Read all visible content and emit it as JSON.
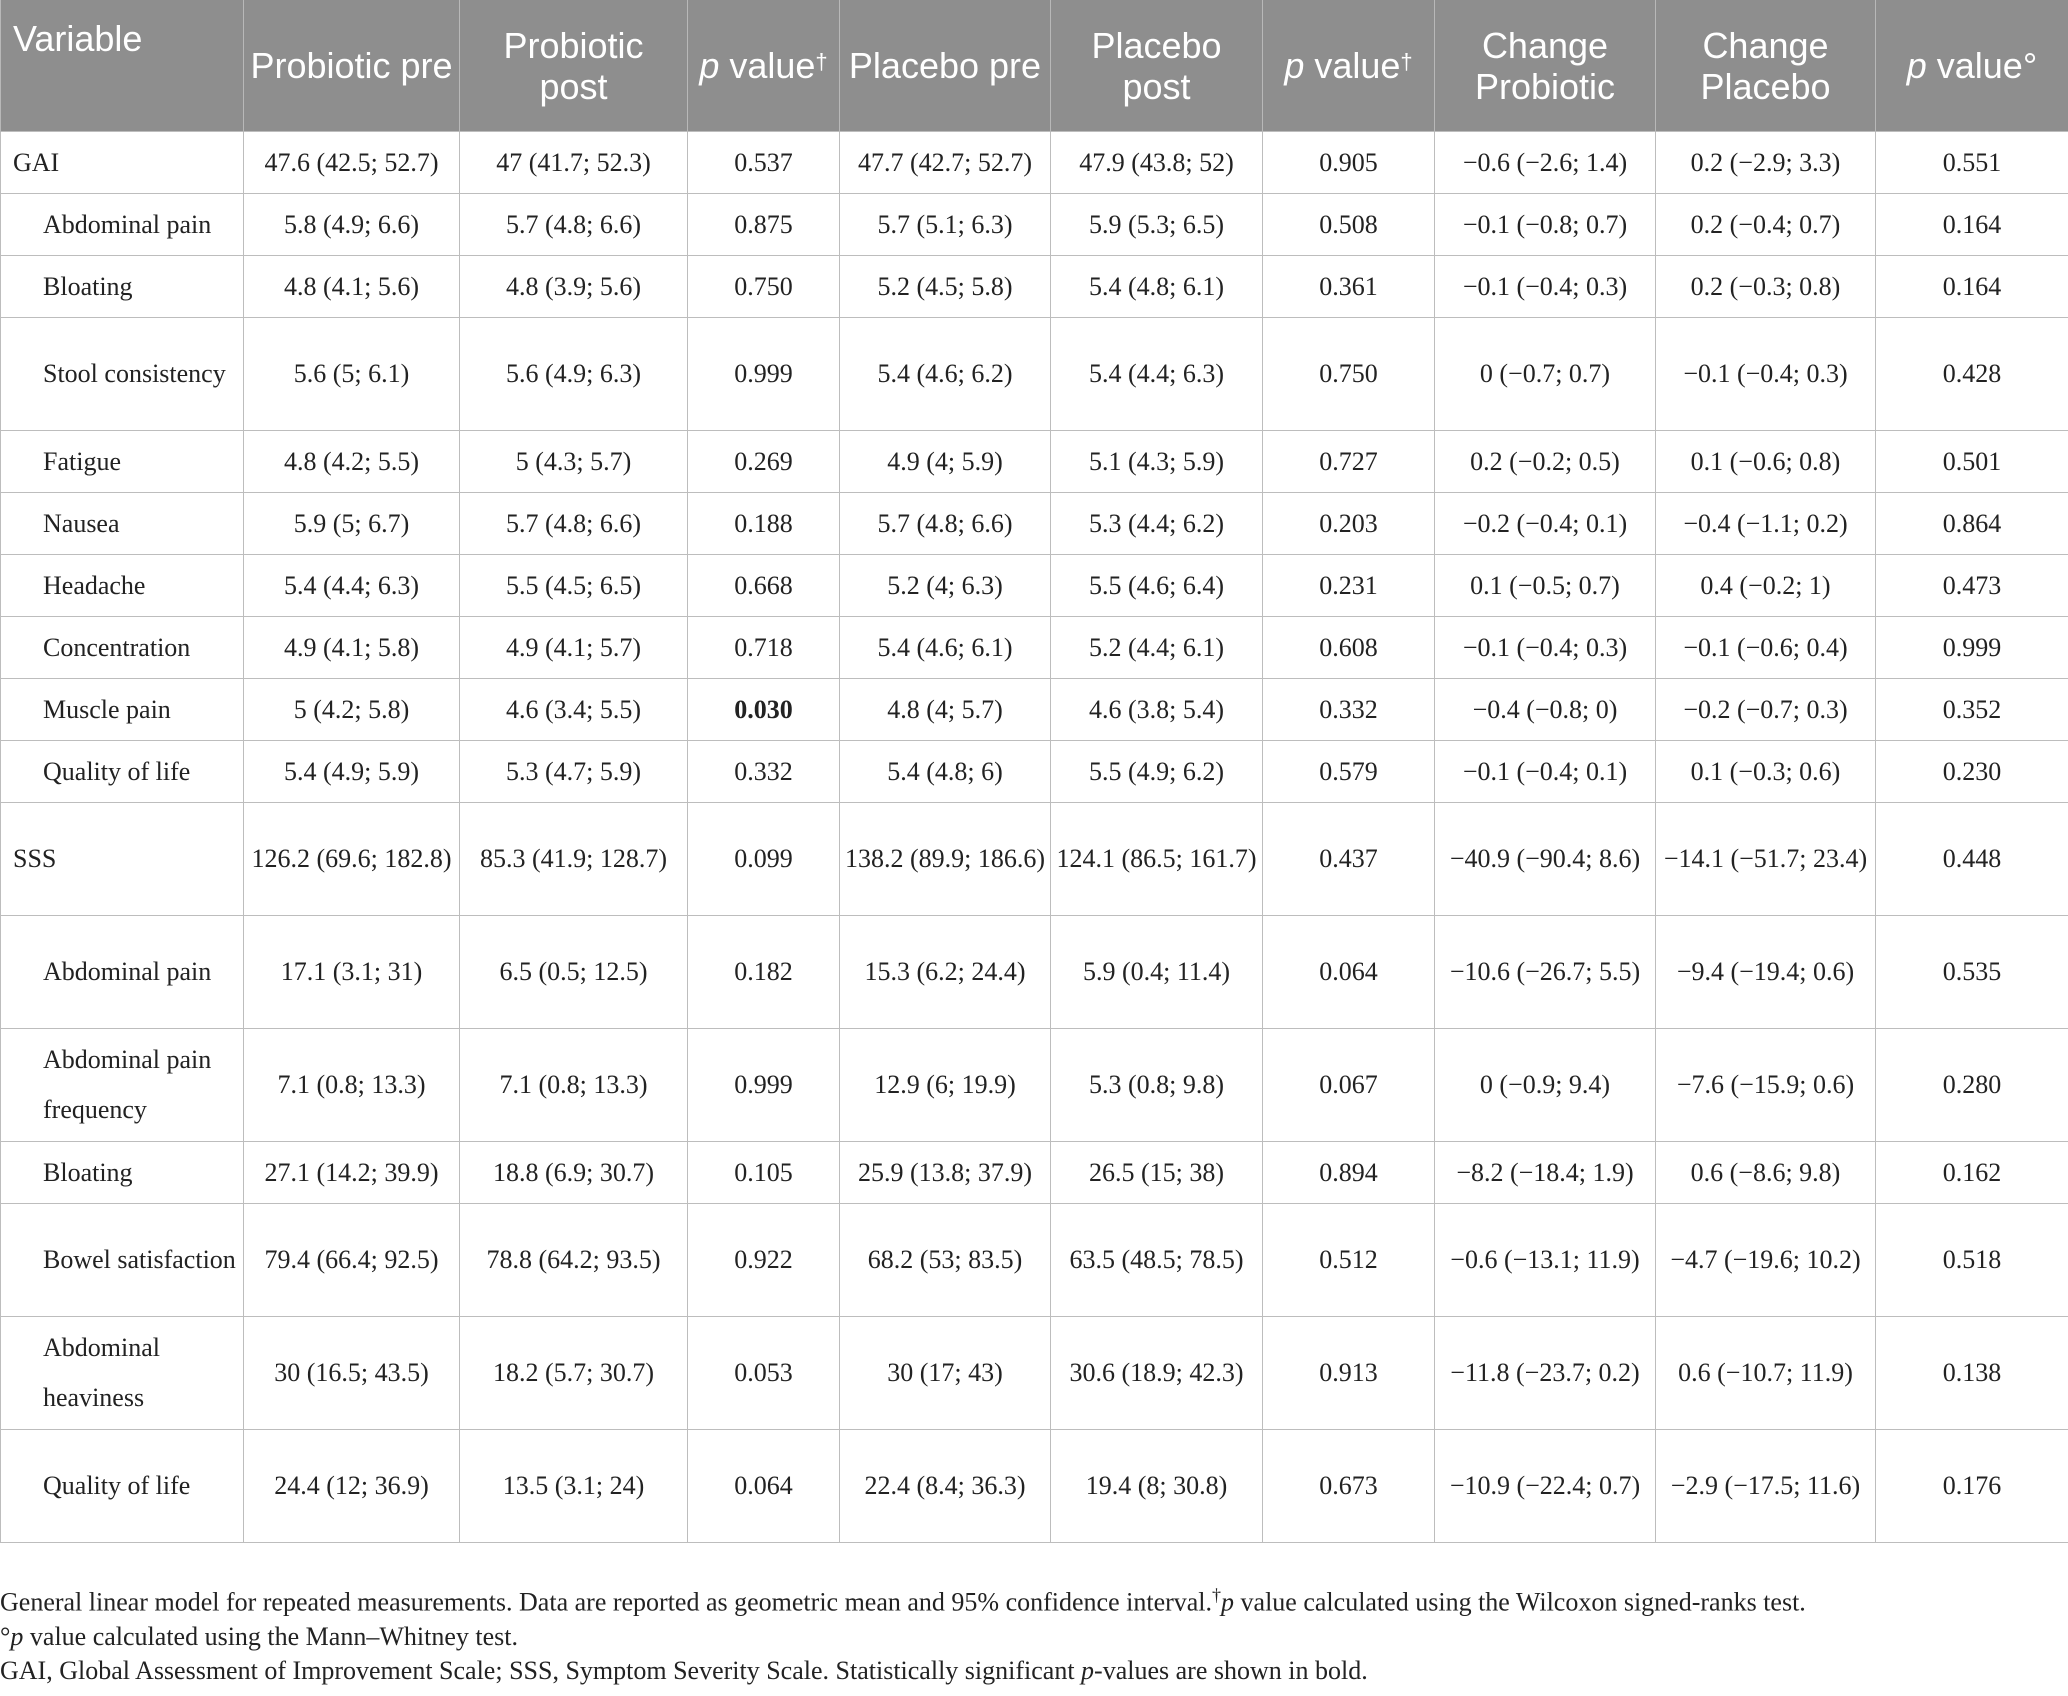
{
  "table": {
    "headers": {
      "variable": "Variable",
      "probiotic_pre": "Probiotic pre",
      "probiotic_post": "Probiotic post",
      "p_value_italic": "p",
      "p_value_word": " value",
      "dagger": "†",
      "placebo_pre": "Placebo pre",
      "placebo_post": "Placebo post",
      "change_probiotic": "Change Probiotic",
      "change_placebo": "Change Placebo",
      "degree": "°"
    },
    "rows": [
      {
        "variable": "GAI",
        "probiotic_pre": "47.6 (42.5; 52.7)",
        "probiotic_post": "47 (41.7; 52.3)",
        "p1": "0.537",
        "placebo_pre": "47.7 (42.7; 52.7)",
        "placebo_post": "47.9 (43.8; 52)",
        "p2": "0.905",
        "change_probiotic": "−0.6 (−2.6; 1.4)",
        "change_placebo": "0.2 (−2.9; 3.3)",
        "p3": "0.551"
      },
      {
        "variable": "Abdominal pain",
        "probiotic_pre": "5.8 (4.9; 6.6)",
        "probiotic_post": "5.7 (4.8; 6.6)",
        "p1": "0.875",
        "placebo_pre": "5.7 (5.1; 6.3)",
        "placebo_post": "5.9 (5.3; 6.5)",
        "p2": "0.508",
        "change_probiotic": "−0.1 (−0.8; 0.7)",
        "change_placebo": "0.2 (−0.4; 0.7)",
        "p3": "0.164"
      },
      {
        "variable": "Bloating",
        "probiotic_pre": "4.8 (4.1; 5.6)",
        "probiotic_post": "4.8 (3.9; 5.6)",
        "p1": "0.750",
        "placebo_pre": "5.2 (4.5; 5.8)",
        "placebo_post": "5.4 (4.8; 6.1)",
        "p2": "0.361",
        "change_probiotic": "−0.1 (−0.4; 0.3)",
        "change_placebo": "0.2 (−0.3; 0.8)",
        "p3": "0.164"
      },
      {
        "variable": "Stool consistency",
        "probiotic_pre": "5.6 (5; 6.1)",
        "probiotic_post": "5.6 (4.9; 6.3)",
        "p1": "0.999",
        "placebo_pre": "5.4 (4.6; 6.2)",
        "placebo_post": "5.4 (4.4; 6.3)",
        "p2": "0.750",
        "change_probiotic": "0 (−0.7; 0.7)",
        "change_placebo": "−0.1 (−0.4; 0.3)",
        "p3": "0.428"
      },
      {
        "variable": "Fatigue",
        "probiotic_pre": "4.8 (4.2; 5.5)",
        "probiotic_post": "5 (4.3; 5.7)",
        "p1": "0.269",
        "placebo_pre": "4.9 (4; 5.9)",
        "placebo_post": "5.1 (4.3; 5.9)",
        "p2": "0.727",
        "change_probiotic": "0.2 (−0.2; 0.5)",
        "change_placebo": "0.1 (−0.6; 0.8)",
        "p3": "0.501"
      },
      {
        "variable": "Nausea",
        "probiotic_pre": "5.9 (5; 6.7)",
        "probiotic_post": "5.7 (4.8; 6.6)",
        "p1": "0.188",
        "placebo_pre": "5.7 (4.8; 6.6)",
        "placebo_post": "5.3 (4.4; 6.2)",
        "p2": "0.203",
        "change_probiotic": "−0.2 (−0.4; 0.1)",
        "change_placebo": "−0.4 (−1.1; 0.2)",
        "p3": "0.864"
      },
      {
        "variable": "Headache",
        "probiotic_pre": "5.4 (4.4; 6.3)",
        "probiotic_post": "5.5 (4.5; 6.5)",
        "p1": "0.668",
        "placebo_pre": "5.2 (4; 6.3)",
        "placebo_post": "5.5 (4.6; 6.4)",
        "p2": "0.231",
        "change_probiotic": "0.1 (−0.5; 0.7)",
        "change_placebo": "0.4 (−0.2; 1)",
        "p3": "0.473"
      },
      {
        "variable": "Concentration",
        "probiotic_pre": "4.9 (4.1; 5.8)",
        "probiotic_post": "4.9 (4.1; 5.7)",
        "p1": "0.718",
        "placebo_pre": "5.4 (4.6; 6.1)",
        "placebo_post": "5.2 (4.4; 6.1)",
        "p2": "0.608",
        "change_probiotic": "−0.1 (−0.4; 0.3)",
        "change_placebo": "−0.1 (−0.6; 0.4)",
        "p3": "0.999"
      },
      {
        "variable": "Muscle pain",
        "probiotic_pre": "5 (4.2; 5.8)",
        "probiotic_post": "4.6 (3.4; 5.5)",
        "p1": "0.030",
        "placebo_pre": "4.8 (4; 5.7)",
        "placebo_post": "4.6 (3.8; 5.4)",
        "p2": "0.332",
        "change_probiotic": "−0.4 (−0.8; 0)",
        "change_placebo": "−0.2 (−0.7; 0.3)",
        "p3": "0.352"
      },
      {
        "variable": "Quality of life",
        "probiotic_pre": "5.4 (4.9; 5.9)",
        "probiotic_post": "5.3 (4.7; 5.9)",
        "p1": "0.332",
        "placebo_pre": "5.4 (4.8; 6)",
        "placebo_post": "5.5 (4.9; 6.2)",
        "p2": "0.579",
        "change_probiotic": "−0.1 (−0.4; 0.1)",
        "change_placebo": "0.1 (−0.3; 0.6)",
        "p3": "0.230"
      },
      {
        "variable": "SSS",
        "probiotic_pre": "126.2 (69.6; 182.8)",
        "probiotic_post": "85.3 (41.9; 128.7)",
        "p1": "0.099",
        "placebo_pre": "138.2 (89.9; 186.6)",
        "placebo_post": "124.1 (86.5; 161.7)",
        "p2": "0.437",
        "change_probiotic": "−40.9 (−90.4; 8.6)",
        "change_placebo": "−14.1 (−51.7; 23.4)",
        "p3": "0.448"
      },
      {
        "variable": "Abdominal pain",
        "probiotic_pre": "17.1 (3.1; 31)",
        "probiotic_post": "6.5 (0.5; 12.5)",
        "p1": "0.182",
        "placebo_pre": "15.3 (6.2; 24.4)",
        "placebo_post": "5.9 (0.4; 11.4)",
        "p2": "0.064",
        "change_probiotic": "−10.6 (−26.7; 5.5)",
        "change_placebo": "−9.4 (−19.4; 0.6)",
        "p3": "0.535"
      },
      {
        "variable": "Abdominal pain frequency",
        "probiotic_pre": "7.1 (0.8; 13.3)",
        "probiotic_post": "7.1 (0.8; 13.3)",
        "p1": "0.999",
        "placebo_pre": "12.9 (6; 19.9)",
        "placebo_post": "5.3 (0.8; 9.8)",
        "p2": "0.067",
        "change_probiotic": "0 (−0.9; 9.4)",
        "change_placebo": "−7.6 (−15.9; 0.6)",
        "p3": "0.280"
      },
      {
        "variable": "Bloating",
        "probiotic_pre": "27.1 (14.2; 39.9)",
        "probiotic_post": "18.8 (6.9; 30.7)",
        "p1": "0.105",
        "placebo_pre": "25.9 (13.8; 37.9)",
        "placebo_post": "26.5 (15; 38)",
        "p2": "0.894",
        "change_probiotic": "−8.2 (−18.4; 1.9)",
        "change_placebo": "0.6 (−8.6; 9.8)",
        "p3": "0.162"
      },
      {
        "variable": "Bowel satisfaction",
        "probiotic_pre": "79.4 (66.4; 92.5)",
        "probiotic_post": "78.8 (64.2; 93.5)",
        "p1": "0.922",
        "placebo_pre": "68.2 (53; 83.5)",
        "placebo_post": "63.5 (48.5; 78.5)",
        "p2": "0.512",
        "change_probiotic": "−0.6 (−13.1; 11.9)",
        "change_placebo": "−4.7 (−19.6; 10.2)",
        "p3": "0.518"
      },
      {
        "variable": "Abdominal heaviness",
        "probiotic_pre": "30 (16.5; 43.5)",
        "probiotic_post": "18.2 (5.7; 30.7)",
        "p1": "0.053",
        "placebo_pre": "30 (17; 43)",
        "placebo_post": "30.6 (18.9; 42.3)",
        "p2": "0.913",
        "change_probiotic": "−11.8 (−23.7; 0.2)",
        "change_placebo": "0.6 (−10.7; 11.9)",
        "p3": "0.138"
      },
      {
        "variable": "Quality of life",
        "probiotic_pre": "24.4 (12; 36.9)",
        "probiotic_post": "13.5 (3.1; 24)",
        "p1": "0.064",
        "placebo_pre": "22.4 (8.4; 36.3)",
        "placebo_post": "19.4 (8; 30.8)",
        "p2": "0.673",
        "change_probiotic": "−10.9 (−22.4; 0.7)",
        "change_placebo": "−2.9 (−17.5; 11.6)",
        "p3": "0.176"
      }
    ]
  },
  "footnotes": {
    "line1_text": "General linear model for repeated measurements. Data are reported as geometric mean and 95% confidence interval.",
    "line1_dagger": "†",
    "line1_p": "p",
    "line1_rest": " value calculated using the Wilcoxon signed-ranks test.",
    "line2_degree": "°",
    "line2_p": "p",
    "line2_rest": " value calculated using the Mann–Whitney test.",
    "line3_text": "GAI, Global Assessment of Improvement Scale; SSS, Symptom Severity Scale. Statistically significant ",
    "line3_p": "p",
    "line3_rest": "-values are shown in bold."
  }
}
